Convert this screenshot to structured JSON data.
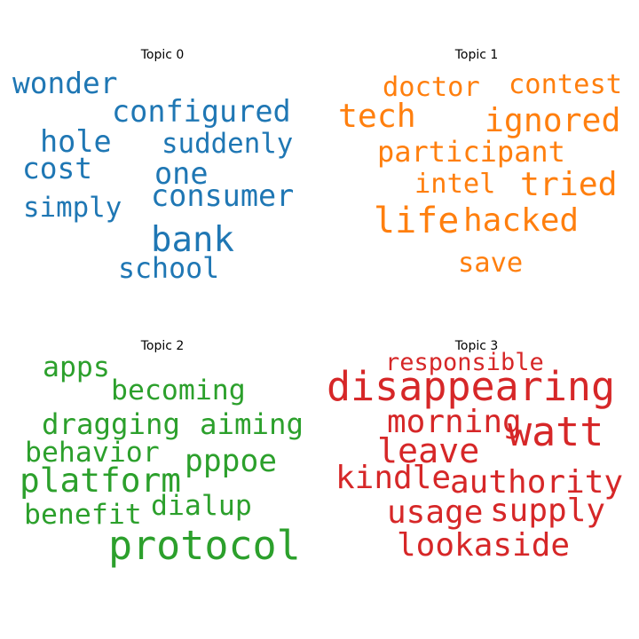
{
  "chart_data": [
    {
      "type": "wordcloud",
      "title": "Topic 0",
      "color": "#1f77b4",
      "words": [
        {
          "text": "wonder",
          "weight": 0.84
        },
        {
          "text": "configured",
          "weight": 0.86
        },
        {
          "text": "hole",
          "weight": 0.86
        },
        {
          "text": "suddenly",
          "weight": 0.79
        },
        {
          "text": "cost",
          "weight": 0.84
        },
        {
          "text": "one",
          "weight": 0.86
        },
        {
          "text": "consumer",
          "weight": 0.86
        },
        {
          "text": "simply",
          "weight": 0.79
        },
        {
          "text": "bank",
          "weight": 1.0
        },
        {
          "text": "school",
          "weight": 0.81
        }
      ]
    },
    {
      "type": "wordcloud",
      "title": "Topic 1",
      "color": "#ff7f0e",
      "words": [
        {
          "text": "doctor",
          "weight": 0.76
        },
        {
          "text": "contest",
          "weight": 0.76
        },
        {
          "text": "tech",
          "weight": 0.91
        },
        {
          "text": "ignored",
          "weight": 0.91
        },
        {
          "text": "participant",
          "weight": 0.8
        },
        {
          "text": "intel",
          "weight": 0.76
        },
        {
          "text": "tried",
          "weight": 0.91
        },
        {
          "text": "life",
          "weight": 1.0
        },
        {
          "text": "hacked",
          "weight": 0.9
        },
        {
          "text": "save",
          "weight": 0.76
        }
      ]
    },
    {
      "type": "wordcloud",
      "title": "Topic 2",
      "color": "#2ca02c",
      "words": [
        {
          "text": "apps",
          "weight": 0.7
        },
        {
          "text": "becoming",
          "weight": 0.7
        },
        {
          "text": "dragging",
          "weight": 0.72
        },
        {
          "text": "aiming",
          "weight": 0.72
        },
        {
          "text": "behavior",
          "weight": 0.7
        },
        {
          "text": "pppoe",
          "weight": 0.77
        },
        {
          "text": "platform",
          "weight": 0.84
        },
        {
          "text": "benefit",
          "weight": 0.7
        },
        {
          "text": "dialup",
          "weight": 0.7
        },
        {
          "text": "protocol",
          "weight": 1.0
        }
      ]
    },
    {
      "type": "wordcloud",
      "title": "Topic 3",
      "color": "#d62728",
      "words": [
        {
          "text": "responsible",
          "weight": 0.6
        },
        {
          "text": "disappearing",
          "weight": 1.0
        },
        {
          "text": "morning",
          "weight": 0.8
        },
        {
          "text": "watt",
          "weight": 1.0
        },
        {
          "text": "leave",
          "weight": 0.85
        },
        {
          "text": "kindle",
          "weight": 0.8
        },
        {
          "text": "authority",
          "weight": 0.8
        },
        {
          "text": "usage",
          "weight": 0.8
        },
        {
          "text": "supply",
          "weight": 0.8
        },
        {
          "text": "lookaside",
          "weight": 0.8
        }
      ]
    }
  ]
}
